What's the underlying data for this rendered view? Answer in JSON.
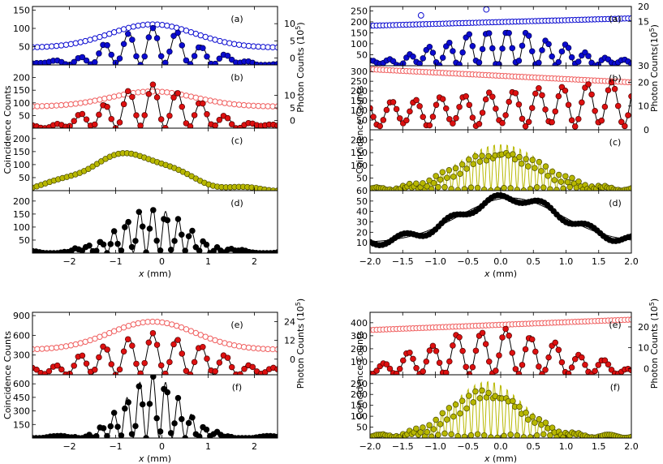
{
  "chart_data": [
    {
      "group": "top-left",
      "type": "scatter",
      "xlabel": "x (mm)",
      "ylabel": "Coincidence Counts",
      "ylabel_right": "Photon Counts (10^5)",
      "xlim": [
        -2.8,
        2.5
      ],
      "xticks": [
        "−2",
        "−1",
        "0",
        "1",
        "2"
      ],
      "panels": [
        {
          "label": "(a)",
          "ylim": [
            0,
            160
          ],
          "yticks": [
            "50",
            "100",
            "150"
          ],
          "right_ylim": [
            -2.0,
            15.0
          ],
          "right_yticks": [
            "0",
            "5",
            "10"
          ],
          "fringe": {
            "env_center": -0.2,
            "env_width": 1.3,
            "period": 1.05,
            "phase": -0.2,
            "amplitude": 100,
            "floor": 2,
            "n_points": 60
          },
          "photon": {
            "center": -0.2,
            "width": 1.3,
            "base": 3.0,
            "peak": 6.8,
            "n_points": 52
          }
        },
        {
          "label": "(b)",
          "ylim": [
            0,
            250
          ],
          "yticks": [
            "50",
            "100",
            "150",
            "200"
          ],
          "right_ylim": [
            -3.0,
            22.0
          ],
          "right_yticks": [
            "0",
            "5",
            "10"
          ],
          "fringe": {
            "env_center": -0.2,
            "env_width": 1.4,
            "period": 1.05,
            "phase": -0.2,
            "amplitude": 165,
            "floor": 4,
            "n_points": 60
          },
          "photon": {
            "center": -0.2,
            "width": 1.3,
            "base": 5.5,
            "peak": 6.0,
            "n_points": 52
          }
        },
        {
          "label": "(c)",
          "ylim": [
            0,
            240
          ],
          "yticks": [
            "50",
            "100",
            "150",
            "200"
          ],
          "envelope_points": {
            "center": -0.7,
            "width": 1.3,
            "amplitude": 135,
            "floor": 5,
            "n_points": 58
          }
        },
        {
          "label": "(d)",
          "ylim": [
            0,
            240
          ],
          "yticks": [
            "50",
            "100",
            "150",
            "200"
          ],
          "fringe": {
            "env_center": -0.2,
            "env_width": 1.0,
            "period": 0.56,
            "phase": -0.2,
            "amplitude": 170,
            "floor": 3,
            "n_points": 70
          }
        }
      ]
    },
    {
      "group": "top-right",
      "type": "scatter",
      "xlabel": "x (mm)",
      "ylabel": "Coincidence Counts",
      "ylabel_right": "Photon Counts(10^5)",
      "xlim": [
        -2.0,
        2.0
      ],
      "xticks": [
        "−2.0",
        "−1.5",
        "−1.0",
        "−0.5",
        "0.0",
        "0.5",
        "1.0",
        "1.5",
        "2.0"
      ],
      "panels": [
        {
          "label": "(a)",
          "ylim": [
            0,
            270
          ],
          "yticks": [
            "50",
            "100",
            "150",
            "200",
            "250"
          ],
          "right_ylim": [
            0,
            20
          ],
          "right_yticks": [
            "",
            "15",
            "20"
          ],
          "fringe": {
            "env_center": 0.0,
            "env_width": 1.3,
            "period": 0.6,
            "phase": -0.5,
            "amplitude": 160,
            "floor": 3,
            "n_points": 80
          },
          "photon": {
            "slope_start": 13.5,
            "slope_end": 16.0,
            "n_points": 80
          },
          "outliers": [
            {
              "x": -1.22,
              "y": 17.0
            },
            {
              "x": -0.22,
              "y": 19.0
            }
          ]
        },
        {
          "label": "(b)",
          "ylim": [
            0,
            330
          ],
          "yticks": [
            "50",
            "100",
            "150",
            "200",
            "250",
            "300"
          ],
          "right_ylim": [
            0,
            27
          ],
          "right_yticks": [
            "30",
            "20",
            "10",
            "0"
          ],
          "fringe_linear": {
            "period": 0.75,
            "phase": 0.2,
            "amp_start": 110,
            "amp_end": 230,
            "floor": 25,
            "n_points": 80
          },
          "photon": {
            "slope_start": 25.5,
            "slope_end": 20.0,
            "n_points": 80
          }
        },
        {
          "label": "(c)",
          "ylim": [
            0,
            240
          ],
          "yticks": [
            "50",
            "100",
            "150",
            "200"
          ],
          "fringe": {
            "env_center": 0.0,
            "env_width": 0.9,
            "period": 0.2,
            "phase": -0.3,
            "amplitude": 180,
            "floor": 5,
            "n_points": 120
          }
        },
        {
          "label": "(d)",
          "ylim": [
            0,
            60
          ],
          "yticks": [
            "10",
            "20",
            "30",
            "40",
            "50",
            "60"
          ],
          "envelope_points": {
            "center": 0.15,
            "width": 1.1,
            "amplitude": 43,
            "floor": 10,
            "n_points": 85,
            "scatter": 4
          }
        }
      ]
    },
    {
      "group": "bottom-left",
      "type": "scatter",
      "xlabel": "x (mm)",
      "ylabel": "Coincidence Counts",
      "ylabel_right": "Photon Counts (10^5)",
      "xlim": [
        -2.8,
        2.5
      ],
      "xticks": [
        "−2",
        "−1",
        "0",
        "1",
        "2"
      ],
      "panels": [
        {
          "label": "(e)",
          "ylim": [
            0,
            950
          ],
          "yticks": [
            "300",
            "600",
            "900"
          ],
          "right_ylim": [
            -10,
            30
          ],
          "right_yticks": [
            "0",
            "12",
            "24"
          ],
          "fringe": {
            "env_center": -0.2,
            "env_width": 1.8,
            "period": 1.05,
            "phase": -0.2,
            "amplitude": 600,
            "floor": 10,
            "n_points": 60
          },
          "photon": {
            "center": -0.2,
            "width": 1.3,
            "base": 6.0,
            "peak": 18.0,
            "n_points": 52
          }
        },
        {
          "label": "(f)",
          "ylim": [
            0,
            700
          ],
          "yticks": [
            "150",
            "300",
            "450",
            "600"
          ],
          "fringe": {
            "env_center": -0.2,
            "env_width": 0.85,
            "period": 0.56,
            "phase": -0.2,
            "amplitude": 680,
            "floor": 5,
            "n_points": 70
          }
        }
      ]
    },
    {
      "group": "bottom-right",
      "type": "scatter",
      "xlabel": "x (mm)",
      "ylabel": "Coincidence Counts",
      "ylabel_right": "Photon Counts (10^5)",
      "xlim": [
        -2.0,
        2.0
      ],
      "xticks": [
        "−2.0",
        "−1.5",
        "−1.0",
        "−0.5",
        "0.0",
        "0.5",
        "1.0",
        "1.5",
        "2.0"
      ],
      "panels": [
        {
          "label": "(e)",
          "ylim": [
            0,
            480
          ],
          "yticks": [
            "100",
            "200",
            "300",
            "400"
          ],
          "right_ylim": [
            -3,
            27
          ],
          "right_yticks": [
            "0",
            "10",
            "20"
          ],
          "fringe": {
            "env_center": -0.1,
            "env_width": 1.5,
            "period": 0.75,
            "phase": 0.08,
            "amplitude": 340,
            "floor": 5,
            "n_points": 80
          },
          "photon": {
            "slope_start": 18.5,
            "slope_end": 23.5,
            "n_points": 80
          }
        },
        {
          "label": "(f)",
          "ylim": [
            0,
            290
          ],
          "yticks": [
            "50",
            "100",
            "150",
            "200",
            "250"
          ],
          "fringe": {
            "env_center": -0.2,
            "env_width": 0.75,
            "period": 0.2,
            "phase": -0.3,
            "amplitude": 255,
            "floor": 8,
            "n_points": 120
          }
        }
      ]
    }
  ],
  "colors": {
    "blue": "#0b0bd0",
    "red": "#dd1010",
    "pink": "#f06060",
    "olive": "#b8b800",
    "olive_edge": "#4a4a00",
    "black": "#000000"
  }
}
